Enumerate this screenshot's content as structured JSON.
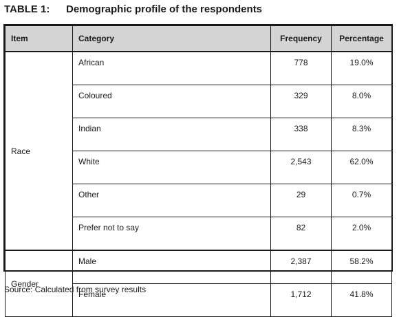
{
  "caption": {
    "label": "TABLE 1:",
    "title": "Demographic profile of the respondents"
  },
  "table": {
    "headers": {
      "item": "Item",
      "category": "Category",
      "frequency": "Frequency",
      "percentage": "Percentage"
    },
    "race": {
      "item": "Race",
      "rows": [
        {
          "category": "African",
          "frequency": "778",
          "percentage": "19.0%"
        },
        {
          "category": "Coloured",
          "frequency": "329",
          "percentage": "8.0%"
        },
        {
          "category": "Indian",
          "frequency": "338",
          "percentage": "8.3%"
        },
        {
          "category": "White",
          "frequency": "2,543",
          "percentage": "62.0%"
        },
        {
          "category": "Other",
          "frequency": "29",
          "percentage": "0.7%"
        },
        {
          "category": "Prefer not to say",
          "frequency": "82",
          "percentage": "2.0%"
        }
      ]
    },
    "gender": {
      "item": "Gender",
      "rows": [
        {
          "category": "Male",
          "frequency": "2,387",
          "percentage": "58.2%"
        },
        {
          "category": "Female",
          "frequency": "1,712",
          "percentage": "41.8%"
        }
      ]
    }
  },
  "source": "Source: Calculated from survey results"
}
